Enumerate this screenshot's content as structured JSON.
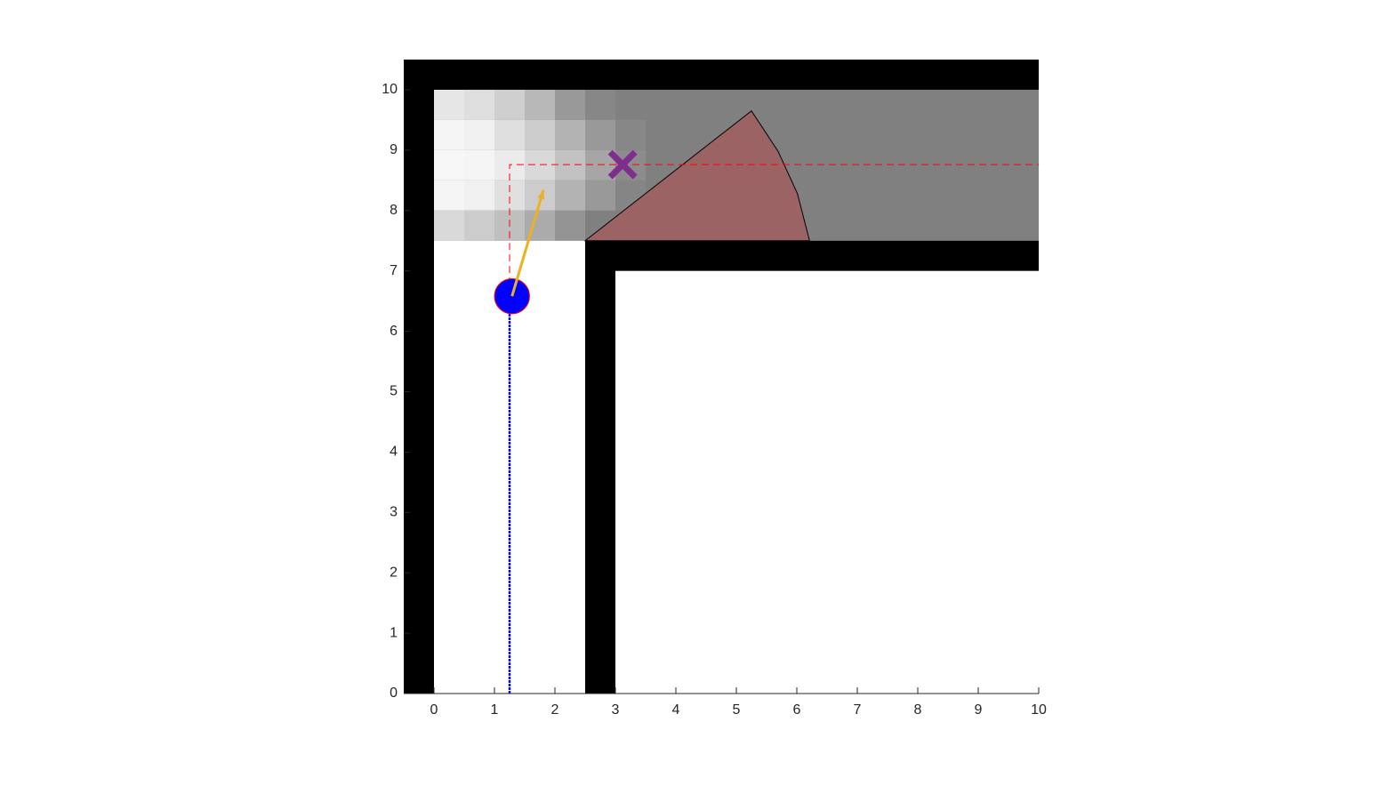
{
  "chart_data": {
    "type": "robot_map",
    "xlim": [
      -0.5,
      10
    ],
    "ylim": [
      0,
      10.5
    ],
    "xticks": [
      0,
      1,
      2,
      3,
      4,
      5,
      6,
      7,
      8,
      9,
      10
    ],
    "yticks": [
      0,
      1,
      2,
      3,
      4,
      5,
      6,
      7,
      8,
      9,
      10
    ],
    "walls": {
      "color": "#000000",
      "rects": [
        {
          "x": [
            -0.5,
            0
          ],
          "y": [
            0,
            10.5
          ]
        },
        {
          "x": [
            -0.5,
            10
          ],
          "y": [
            10,
            10.5
          ]
        },
        {
          "x": [
            2.5,
            3
          ],
          "y": [
            0,
            7.5
          ]
        },
        {
          "x": [
            2.5,
            10
          ],
          "y": [
            7,
            7.5
          ]
        }
      ]
    },
    "explored_region": {
      "color": "#808080",
      "x": [
        0,
        10
      ],
      "y": [
        7.5,
        10
      ]
    },
    "heatmap": {
      "x": [
        0,
        0.5,
        1,
        1.5,
        2,
        2.5,
        3,
        3.5
      ],
      "y": [
        10,
        9.5,
        9,
        8.5,
        8,
        7.5
      ],
      "values": [
        [
          0.9,
          0.87,
          0.81,
          0.72,
          0.6,
          0.53,
          0.5
        ],
        [
          0.96,
          0.94,
          0.87,
          0.8,
          0.7,
          0.6,
          0.53
        ],
        [
          0.97,
          0.96,
          0.92,
          0.85,
          0.76,
          0.65,
          0.55
        ],
        [
          0.96,
          0.94,
          0.88,
          0.8,
          0.7,
          0.6,
          0.52
        ],
        [
          0.85,
          0.8,
          0.75,
          0.67,
          0.58,
          0.5,
          0.5
        ]
      ]
    },
    "sensor_region": {
      "color": "#9b6363",
      "x": [
        2.5,
        5.25,
        5.69,
        6.01,
        6.21
      ],
      "y": [
        7.5,
        9.65,
        8.98,
        8.28,
        7.5
      ]
    },
    "planned_path": {
      "color": "#ff0000",
      "x": [
        1.25,
        1.25,
        10
      ],
      "y": [
        6.58,
        8.76,
        8.76
      ]
    },
    "trajectory": {
      "color": "#0000ff",
      "x": [
        1.25,
        1.25
      ],
      "y": [
        0,
        6.58
      ]
    },
    "robot": {
      "color": "#0000ff",
      "edge_color": "#ff0000",
      "x": 1.29,
      "y": 6.58,
      "radius": 0.29
    },
    "heading": {
      "color": "#edb120",
      "x": [
        1.29,
        1.81
      ],
      "y": [
        6.58,
        8.34
      ]
    },
    "goal": {
      "color": "#7e2f8e",
      "x": 3.12,
      "y": 8.76
    }
  }
}
